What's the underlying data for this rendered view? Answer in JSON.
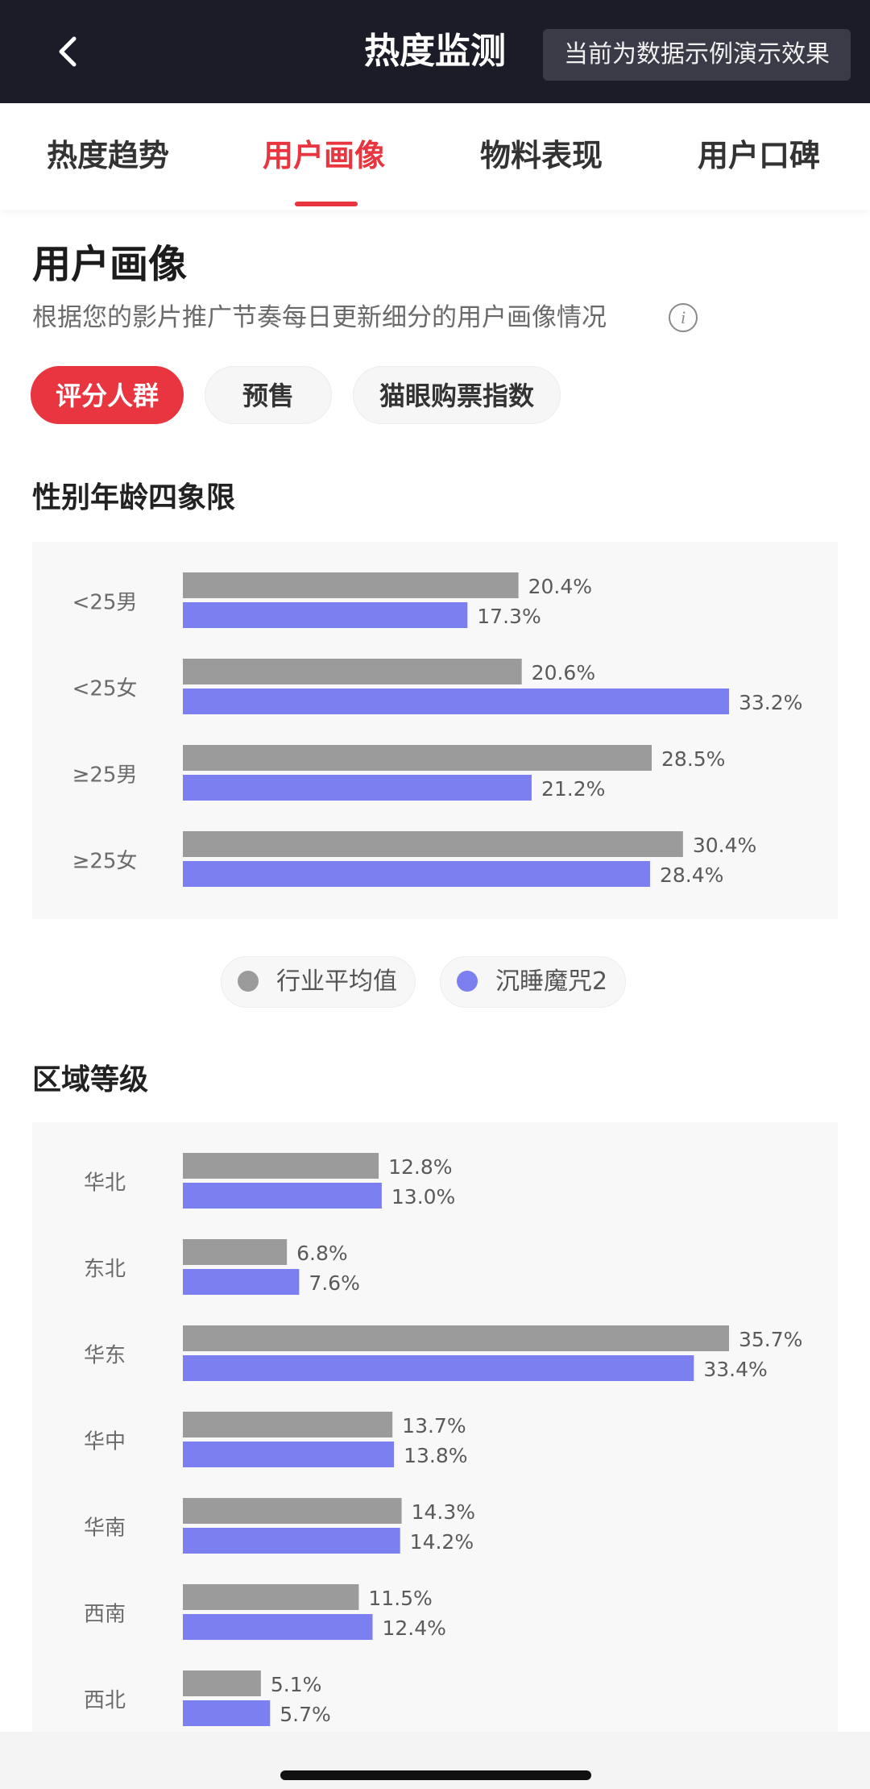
{
  "header": {
    "title": "热度监测",
    "demo_note": "当前为数据示例演示效果",
    "back_icon": "chevron-left-icon"
  },
  "tabs": [
    {
      "label": "热度趋势",
      "active": false
    },
    {
      "label": "用户画像",
      "active": true
    },
    {
      "label": "物料表现",
      "active": false
    },
    {
      "label": "用户口碑",
      "active": false
    }
  ],
  "section": {
    "title": "用户画像",
    "subtitle": "根据您的影片推广节奏每日更新细分的用户画像情况",
    "info_icon": "info-icon",
    "info_glyph": "i"
  },
  "filters": [
    {
      "label": "评分人群",
      "active": true
    },
    {
      "label": "预售",
      "active": false
    },
    {
      "label": "猫眼购票指数",
      "active": false
    }
  ],
  "colors": {
    "accent": "#e8353f",
    "industry": "#9b9b9b",
    "film": "#7b7ff0"
  },
  "legend": [
    {
      "label": "行业平均值",
      "color": "#9b9b9b"
    },
    {
      "label": "沉睡魔咒2",
      "color": "#7b7ff0"
    }
  ],
  "chart_data": [
    {
      "type": "bar",
      "title": "性别年龄四象限",
      "orientation": "horizontal",
      "categories": [
        "<25男",
        "<25女",
        "≥25男",
        "≥25女"
      ],
      "series": [
        {
          "name": "行业平均值",
          "values": [
            20.4,
            20.6,
            28.5,
            30.4
          ],
          "labels": [
            "20.4%",
            "20.6%",
            "28.5%",
            "30.4%"
          ]
        },
        {
          "name": "沉睡魔咒2",
          "values": [
            17.3,
            33.2,
            21.2,
            28.4
          ],
          "labels": [
            "17.3%",
            "33.2%",
            "21.2%",
            "28.4%"
          ]
        }
      ],
      "unit": "%",
      "xlim": [
        0,
        33.2
      ]
    },
    {
      "type": "bar",
      "title": "区域等级",
      "orientation": "horizontal",
      "categories": [
        "华北",
        "东北",
        "华东",
        "华中",
        "华南",
        "西南",
        "西北"
      ],
      "series": [
        {
          "name": "行业平均值",
          "values": [
            12.8,
            6.8,
            35.7,
            13.7,
            14.3,
            11.5,
            5.1
          ],
          "labels": [
            "12.8%",
            "6.8%",
            "35.7%",
            "13.7%",
            "14.3%",
            "11.5%",
            "5.1%"
          ]
        },
        {
          "name": "沉睡魔咒2",
          "values": [
            13.0,
            7.6,
            33.4,
            13.8,
            14.2,
            12.4,
            5.7
          ],
          "labels": [
            "13.0%",
            "7.6%",
            "33.4%",
            "13.8%",
            "14.2%",
            "12.4%",
            "5.7%"
          ]
        }
      ],
      "unit": "%",
      "xlim": [
        0,
        35.7
      ]
    }
  ]
}
